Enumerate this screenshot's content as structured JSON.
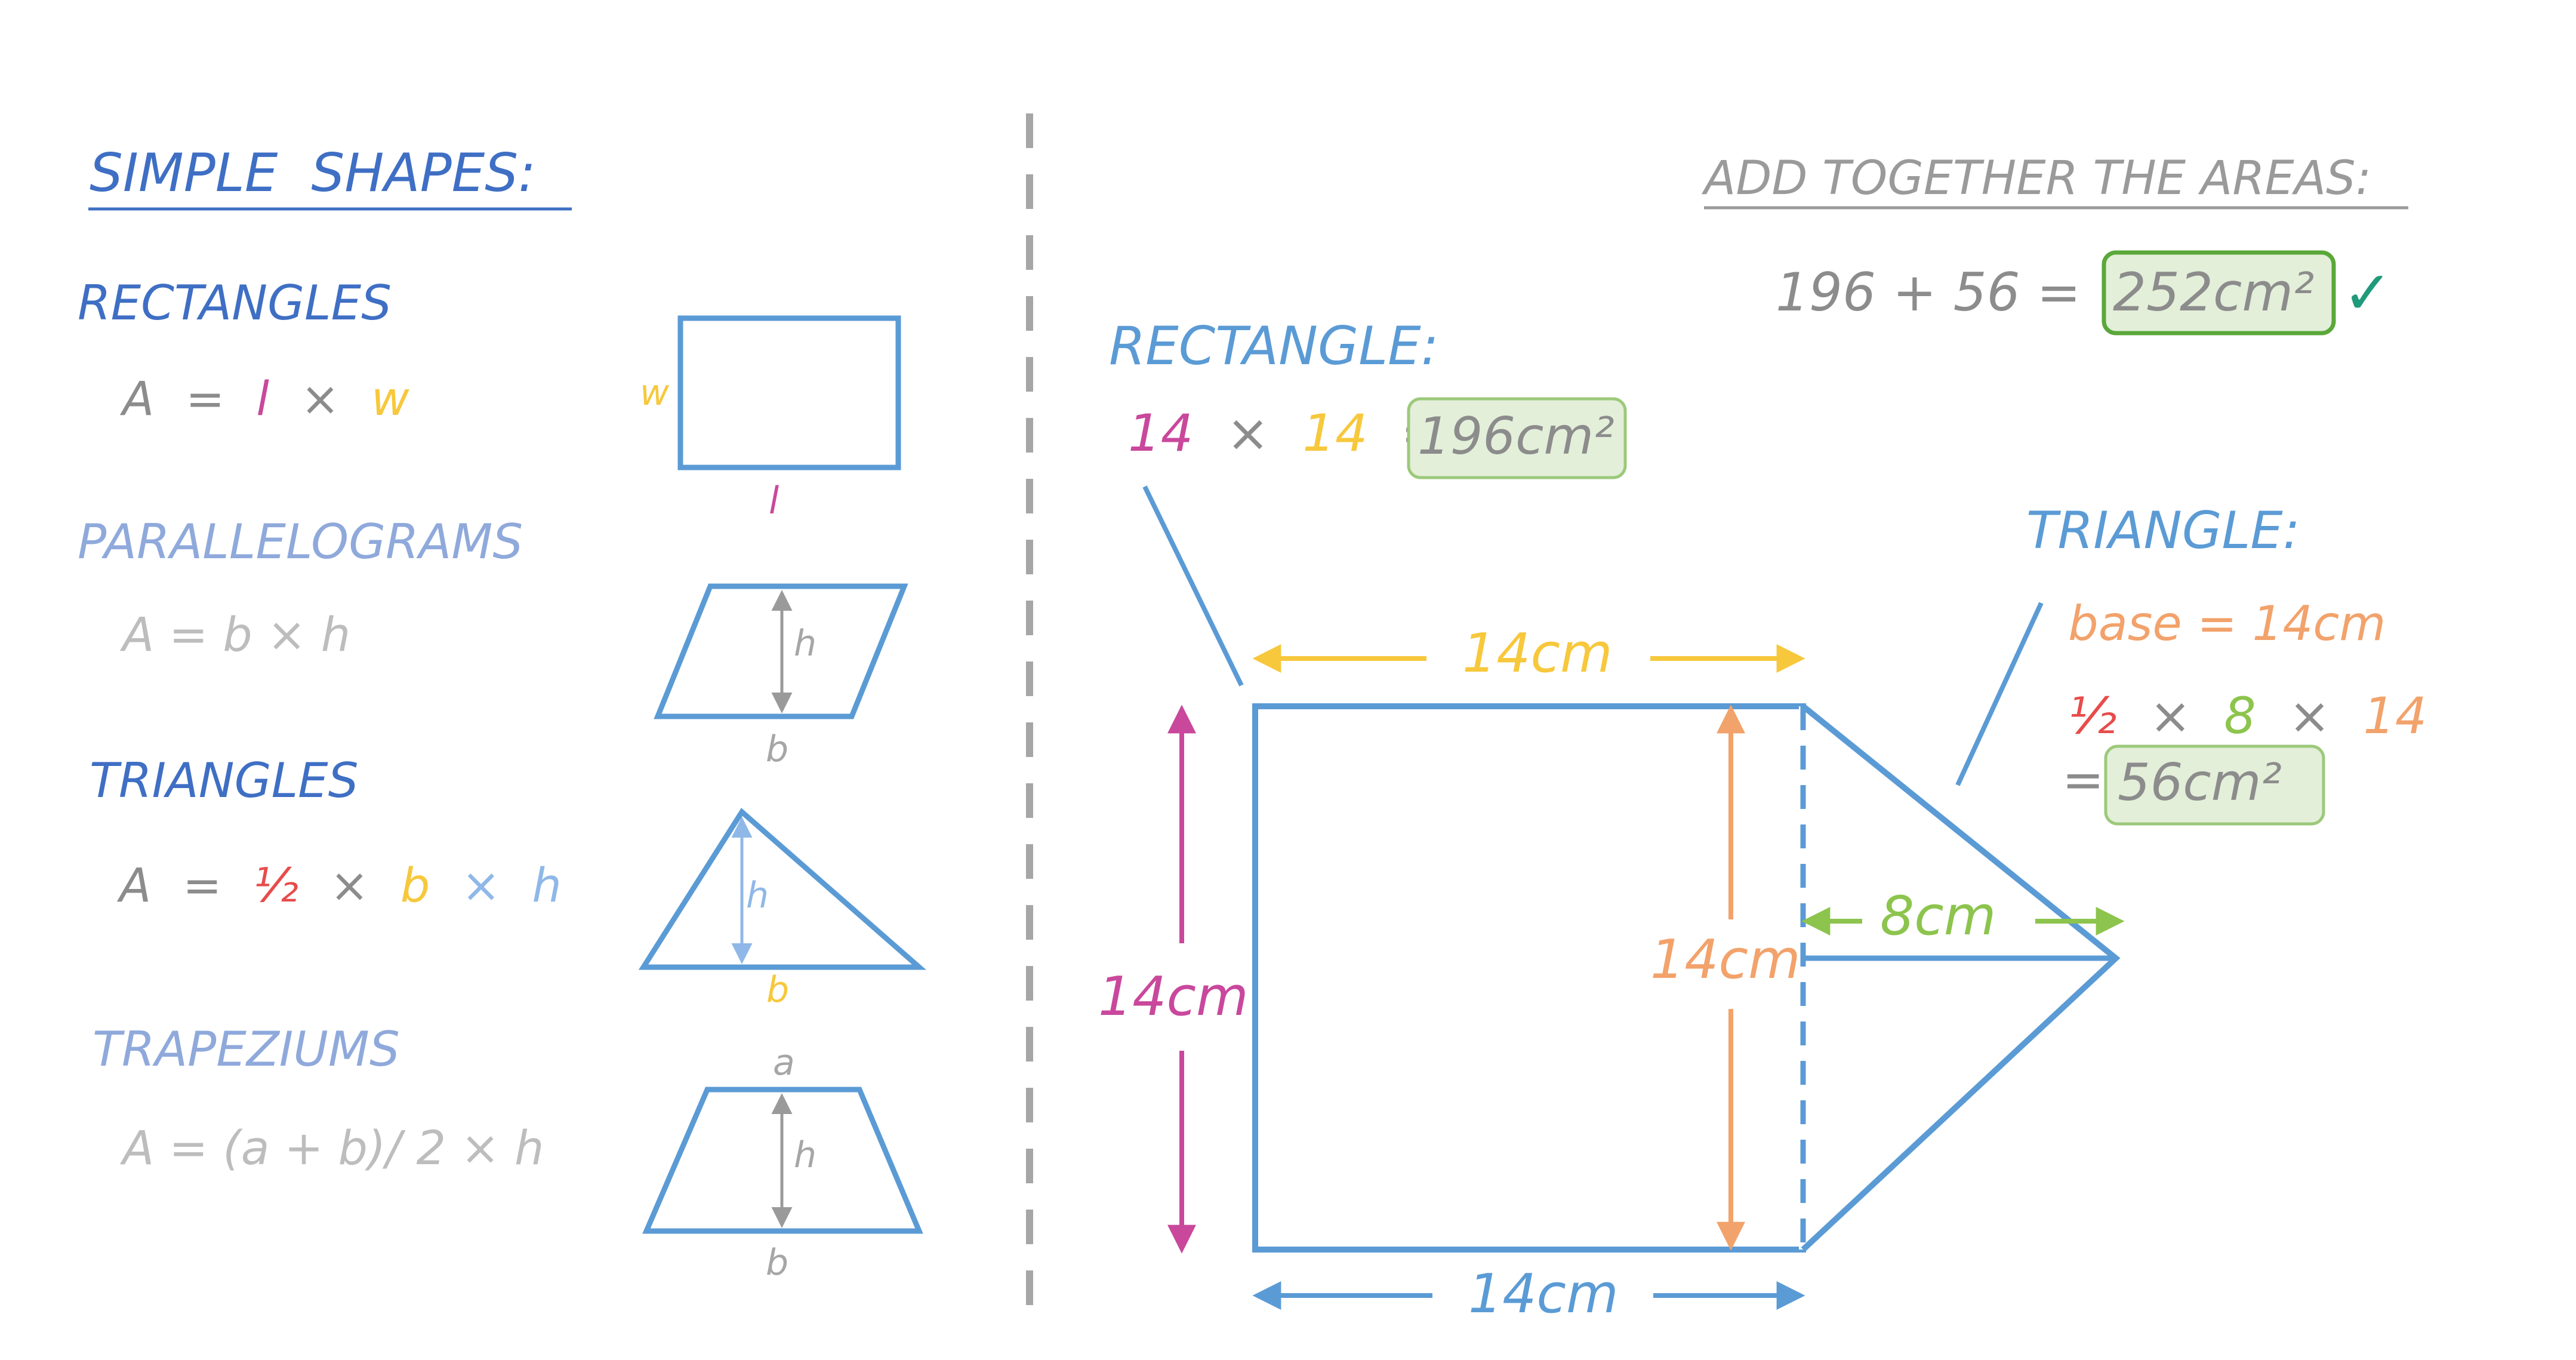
{
  "colors": {
    "blue": "#5b9bd5",
    "dark_blue": "#3f6fc4",
    "light_blue": "#8fa9db",
    "grey": "#8c8c8c",
    "light_grey": "#bdbdbd",
    "pink": "#c9489c",
    "yellow": "#f7c83c",
    "orange": "#f2a26b",
    "green": "#8cc44d",
    "red": "#e84b4b",
    "teal": "#1f9a7a",
    "answer_fill": "#e3efd9",
    "answer_border": "#9cc97a"
  },
  "left": {
    "title": "SIMPLE  SHAPES:",
    "rectangles": {
      "heading": "RECTANGLES",
      "formula": {
        "a": "A",
        "eq": "=",
        "l": "l",
        "times": "×",
        "w": "w"
      },
      "label_w": "w",
      "label_l": "l"
    },
    "parallelograms": {
      "heading": "PARALLELOGRAMS",
      "formula": "A = b × h",
      "label_h": "h",
      "label_b": "b"
    },
    "triangles": {
      "heading": "TRIANGLES",
      "formula": {
        "a": "A",
        "eq": "=",
        "half": "½",
        "times1": "×",
        "b": "b",
        "times2": "×",
        "h": "h"
      },
      "label_h": "h",
      "label_b": "b"
    },
    "trapeziums": {
      "heading": "TRAPEZIUMS",
      "formula": "A = (a + b)/ 2 × h",
      "label_a": "a",
      "label_h": "h",
      "label_b": "b"
    }
  },
  "right": {
    "rectangle": {
      "heading": "RECTANGLE:",
      "calc": {
        "l": "14",
        "times": "×",
        "w": "14",
        "eq": "=",
        "result": "196cm²"
      }
    },
    "triangle": {
      "heading": "TRIANGLE:",
      "base_line": "base = 14cm",
      "calc": {
        "half": "½",
        "times1": "×",
        "height": "8",
        "times2": "×",
        "base": "14",
        "eq": "=",
        "result": "56cm²"
      }
    },
    "total": {
      "heading": "ADD TOGETHER THE AREAS:",
      "sum": "196 + 56 =",
      "result": "252cm²",
      "check": "✓"
    },
    "dimensions": {
      "top": "14cm",
      "left": "14cm",
      "inner": "14cm",
      "bottom": "14cm",
      "triangle_height": "8cm"
    }
  }
}
